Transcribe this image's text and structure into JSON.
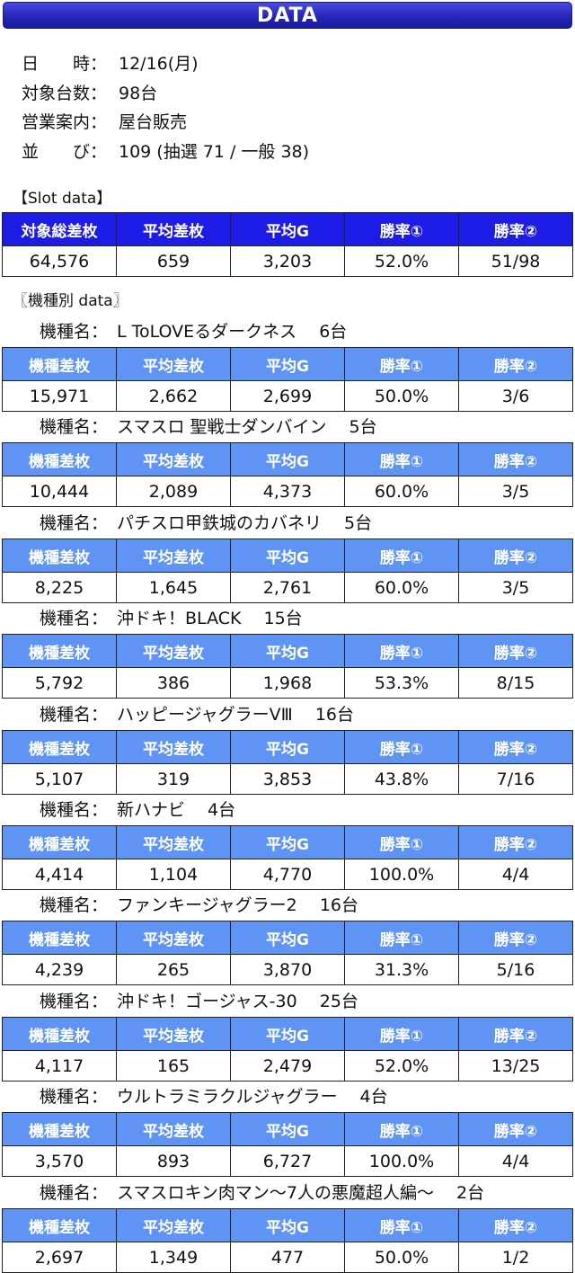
{
  "title": "DATA",
  "info": [
    {
      "key": "日　　時：",
      "value": "12/16(月)"
    },
    {
      "key": "対象台数：",
      "value": "98台"
    },
    {
      "key": "営業案内：",
      "value": "屋台販売"
    },
    {
      "key": "並　　び：",
      "value": "109 (抽選 71 / 一般 38)"
    }
  ],
  "slot_section_label": "【Slot data】",
  "slot_headers": [
    "対象総差枚",
    "平均差枚",
    "平均G",
    "勝率①",
    "勝率②"
  ],
  "slot_values": [
    "64,576",
    "659",
    "3,203",
    "52.0%",
    "51/98"
  ],
  "model_section_label": "〖機種別 data〗",
  "model_name_label": "機種名：",
  "model_headers": [
    "機種差枚",
    "平均差枚",
    "平均G",
    "勝率①",
    "勝率②"
  ],
  "models": [
    {
      "name": "L ToLOVEるダークネス　 6台",
      "values": [
        "15,971",
        "2,662",
        "2,699",
        "50.0%",
        "3/6"
      ]
    },
    {
      "name": "スマスロ 聖戦士ダンバイン　 5台",
      "values": [
        "10,444",
        "2,089",
        "4,373",
        "60.0%",
        "3/5"
      ]
    },
    {
      "name": "パチスロ甲鉄城のカバネリ　 5台",
      "values": [
        "8,225",
        "1,645",
        "2,761",
        "60.0%",
        "3/5"
      ]
    },
    {
      "name": "沖ドキ！BLACK　 15台",
      "values": [
        "5,792",
        "386",
        "1,968",
        "53.3%",
        "8/15"
      ]
    },
    {
      "name": "ハッピージャグラーVⅢ　 16台",
      "values": [
        "5,107",
        "319",
        "3,853",
        "43.8%",
        "7/16"
      ]
    },
    {
      "name": "新ハナビ　 4台",
      "values": [
        "4,414",
        "1,104",
        "4,770",
        "100.0%",
        "4/4"
      ]
    },
    {
      "name": "ファンキージャグラー2　 16台",
      "values": [
        "4,239",
        "265",
        "3,870",
        "31.3%",
        "5/16"
      ]
    },
    {
      "name": "沖ドキ！ゴージャス-30　 25台",
      "values": [
        "4,117",
        "165",
        "2,479",
        "52.0%",
        "13/25"
      ]
    },
    {
      "name": "ウルトラミラクルジャグラー　 4台",
      "values": [
        "3,570",
        "893",
        "6,727",
        "100.0%",
        "4/4"
      ]
    },
    {
      "name": "スマスロキン肉マン～7人の悪魔超人編～　 2台",
      "values": [
        "2,697",
        "1,349",
        "477",
        "50.0%",
        "1/2"
      ]
    }
  ]
}
